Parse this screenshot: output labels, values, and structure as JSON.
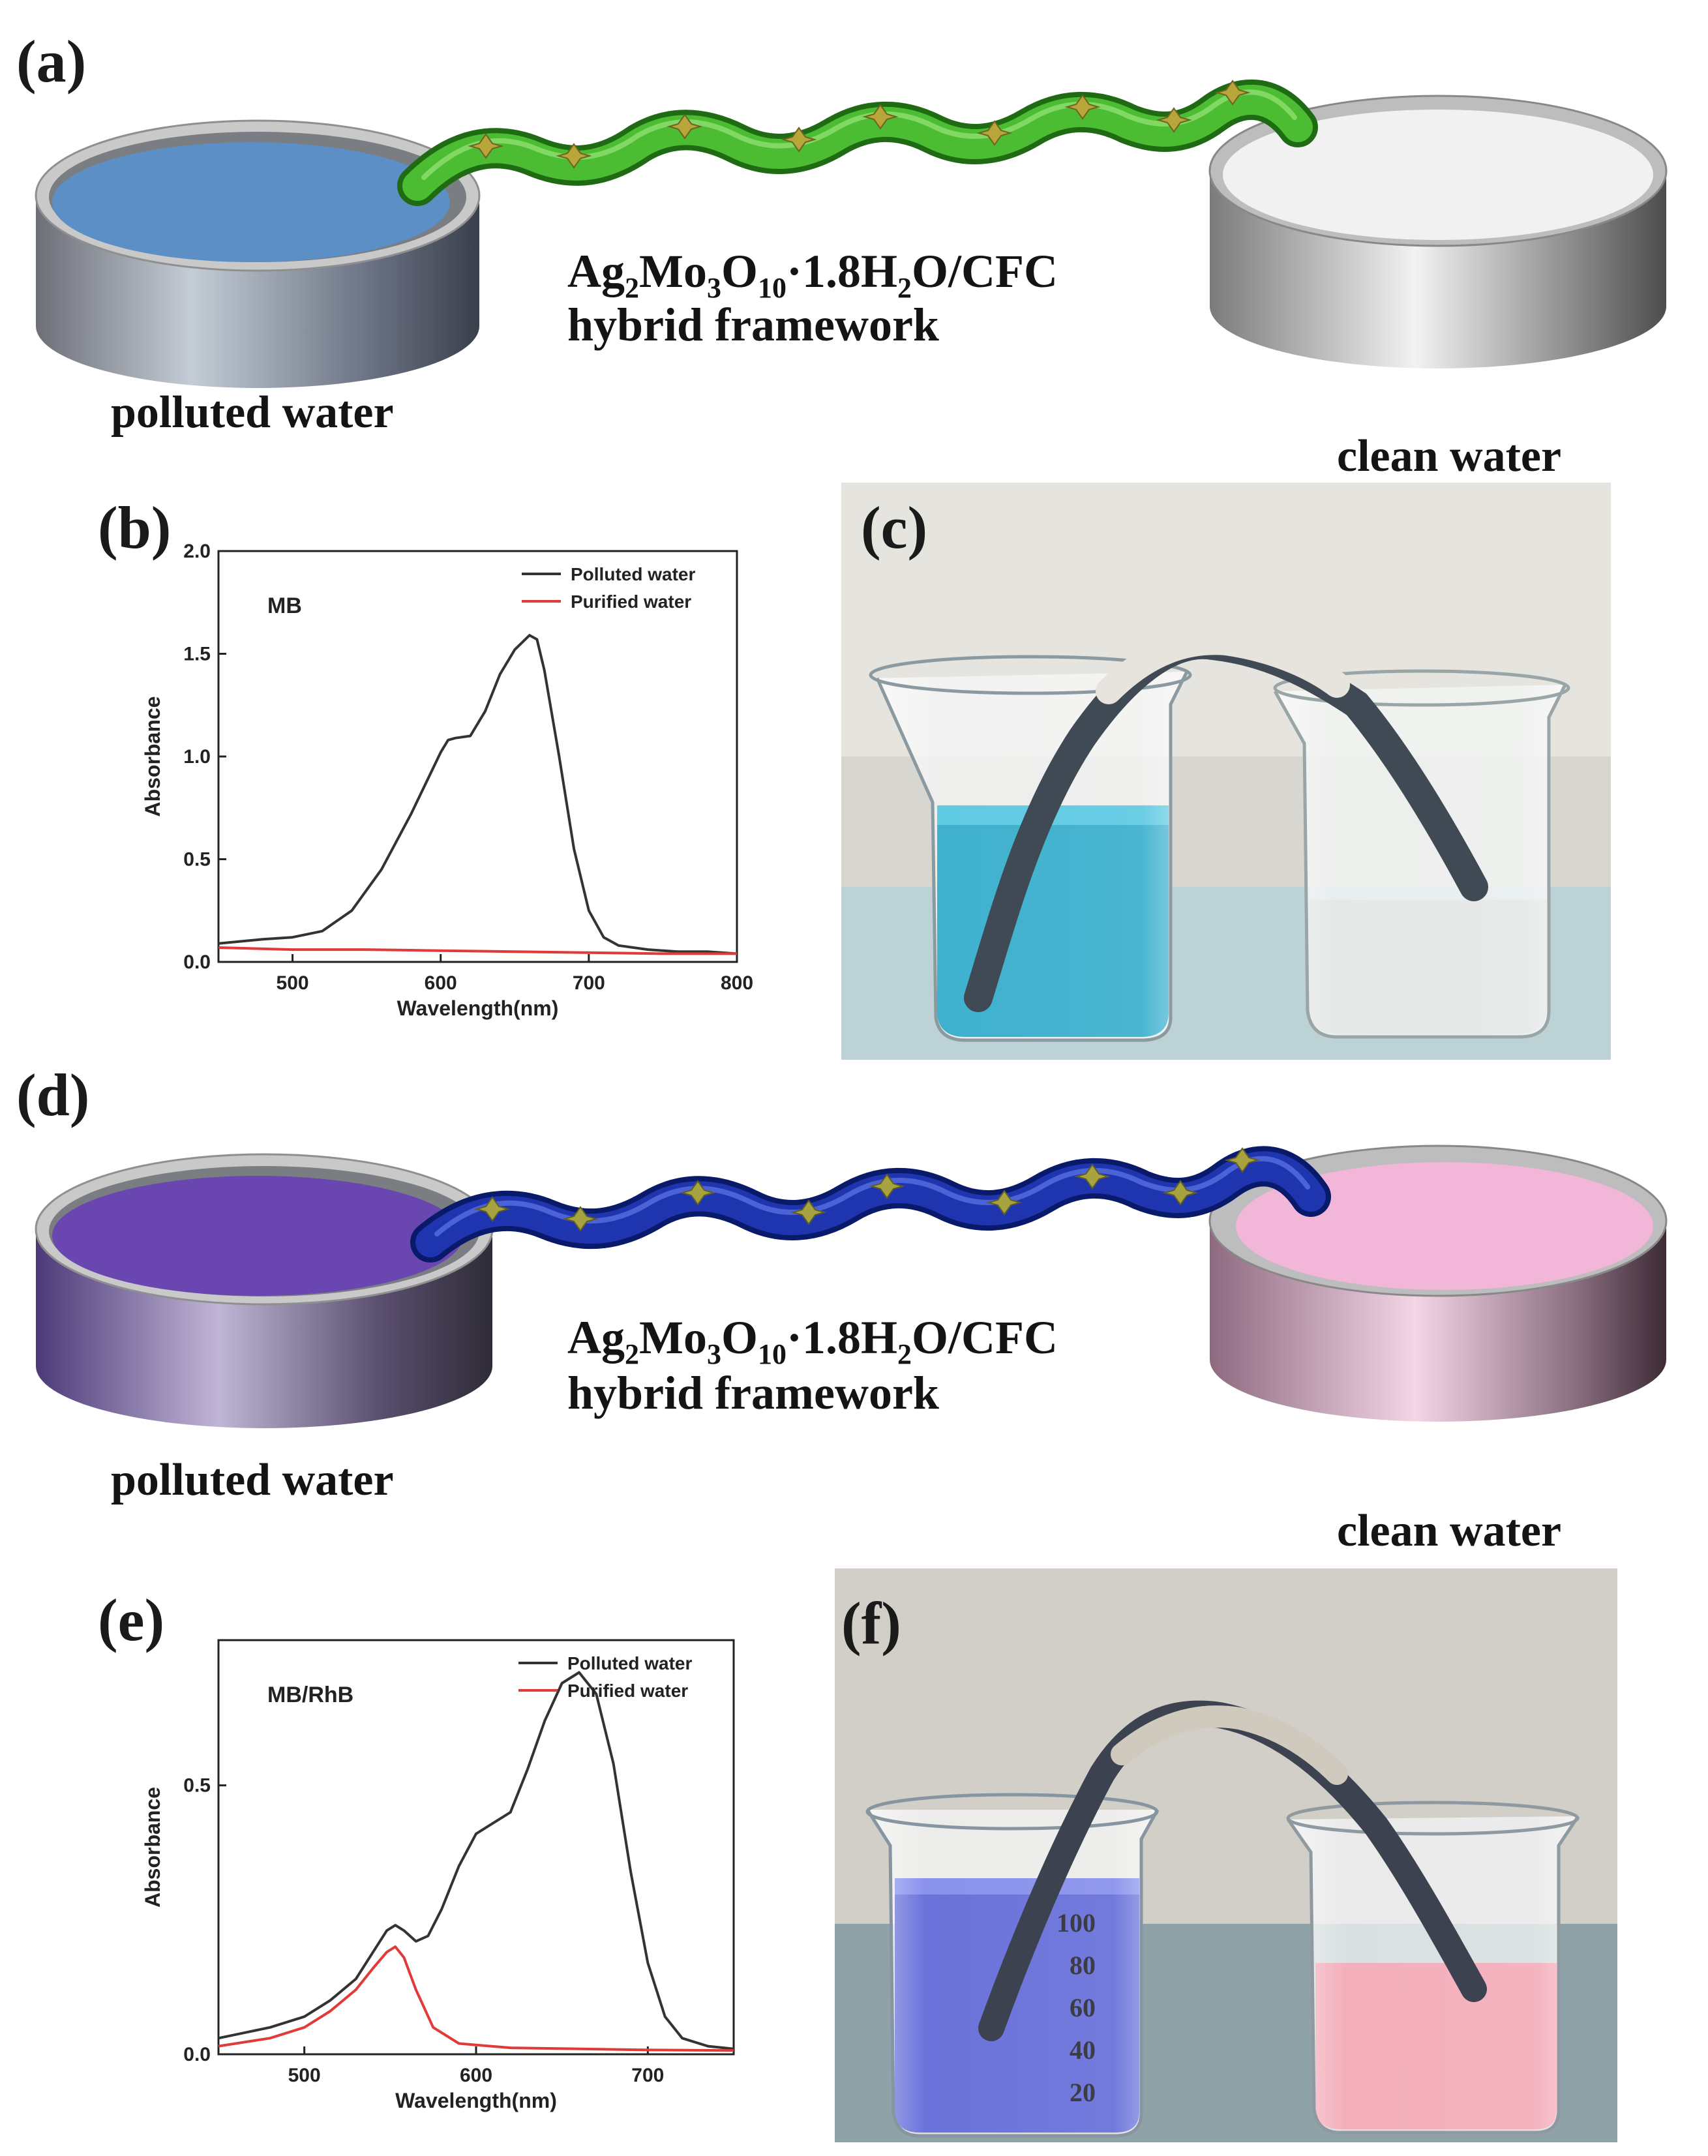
{
  "panels": {
    "a": {
      "letter": "(a)",
      "left_label": "polluted water",
      "right_label": "clean water",
      "framework_title_prefix": "Ag",
      "framework_sub1": "2",
      "framework_mid1": "Mo",
      "framework_sub2": "3",
      "framework_mid2": "O",
      "framework_sub3": "10",
      "framework_mid3": "·1.8H",
      "framework_sub4": "2",
      "framework_suffix": "O/CFC",
      "framework_line2": "hybrid framework",
      "colors": {
        "polluted": "#5b8fc6",
        "clean": "#efefef",
        "strip": "#3fb12a"
      }
    },
    "b": {
      "letter": "(b)",
      "dye_label": "MB",
      "legend": [
        "Polluted water",
        "Purified water"
      ]
    },
    "c": {
      "letter": "(c)",
      "colors": {
        "left_liquid": "#29a8c9",
        "right_liquid": "#e2e6e4",
        "background": "#d8d6d0"
      }
    },
    "d": {
      "letter": "(d)",
      "left_label": "polluted water",
      "right_label": "clean water",
      "framework_title_prefix": "Ag",
      "framework_sub1": "2",
      "framework_mid1": "Mo",
      "framework_sub2": "3",
      "framework_mid2": "O",
      "framework_sub3": "10",
      "framework_mid3": "·1.8H",
      "framework_sub4": "2",
      "framework_suffix": "O/CFC",
      "framework_line2": "hybrid framework",
      "colors": {
        "polluted": "#6a46b0",
        "clean": "#f2b7d8",
        "strip": "#1830a8"
      }
    },
    "e": {
      "letter": "(e)",
      "dye_label": "MB/RhB",
      "legend": [
        "Polluted water",
        "Purified water"
      ]
    },
    "f": {
      "letter": "(f)",
      "colors": {
        "left_liquid": "#5a63d6",
        "right_liquid": "#f2a6b4",
        "background": "#9ca8ab"
      },
      "beaker_marks": [
        "100",
        "80",
        "60",
        "40",
        "20"
      ]
    }
  },
  "chart_data": [
    {
      "panel": "b",
      "type": "line",
      "xlabel": "Wavelength(nm)",
      "ylabel": "Absorbance",
      "xlim": [
        450,
        800
      ],
      "ylim": [
        0,
        2.0
      ],
      "xticks": [
        500,
        600,
        700,
        800
      ],
      "yticks": [
        0.0,
        0.5,
        1.0,
        1.5,
        2.0
      ],
      "ytick_labels": [
        "0.0",
        "0.5",
        "1.0",
        "1.5",
        "2.0"
      ],
      "legend_position": "top-right",
      "series": [
        {
          "name": "Polluted water",
          "color": "#333333",
          "x": [
            450,
            480,
            500,
            520,
            540,
            560,
            580,
            600,
            605,
            610,
            620,
            630,
            640,
            650,
            660,
            665,
            670,
            680,
            690,
            700,
            710,
            720,
            740,
            760,
            780,
            800
          ],
          "y": [
            0.09,
            0.11,
            0.12,
            0.15,
            0.25,
            0.45,
            0.72,
            1.02,
            1.08,
            1.09,
            1.1,
            1.22,
            1.4,
            1.52,
            1.59,
            1.57,
            1.42,
            1.0,
            0.55,
            0.25,
            0.12,
            0.08,
            0.06,
            0.05,
            0.05,
            0.04
          ]
        },
        {
          "name": "Purified water",
          "color": "#e03a3a",
          "x": [
            450,
            500,
            550,
            600,
            650,
            700,
            750,
            800
          ],
          "y": [
            0.07,
            0.06,
            0.06,
            0.055,
            0.05,
            0.045,
            0.04,
            0.04
          ]
        }
      ]
    },
    {
      "panel": "e",
      "type": "line",
      "xlabel": "Wavelength(nm)",
      "ylabel": "Absorbance",
      "xlim": [
        450,
        750
      ],
      "ylim": [
        0,
        0.77
      ],
      "xticks": [
        500,
        600,
        700
      ],
      "yticks": [
        0.0,
        0.5
      ],
      "ytick_labels": [
        "0.0",
        "0.5"
      ],
      "legend_position": "top-right",
      "series": [
        {
          "name": "Polluted water",
          "color": "#333333",
          "x": [
            450,
            480,
            500,
            515,
            530,
            540,
            548,
            553,
            558,
            565,
            572,
            580,
            590,
            600,
            610,
            620,
            630,
            640,
            650,
            660,
            670,
            680,
            690,
            700,
            710,
            720,
            735,
            750
          ],
          "y": [
            0.03,
            0.05,
            0.07,
            0.1,
            0.14,
            0.19,
            0.23,
            0.24,
            0.23,
            0.21,
            0.22,
            0.27,
            0.35,
            0.41,
            0.43,
            0.45,
            0.53,
            0.62,
            0.69,
            0.71,
            0.67,
            0.54,
            0.34,
            0.17,
            0.07,
            0.03,
            0.015,
            0.01
          ]
        },
        {
          "name": "Purified water",
          "color": "#e03a3a",
          "x": [
            450,
            480,
            500,
            515,
            530,
            540,
            548,
            553,
            558,
            565,
            575,
            590,
            620,
            700,
            750
          ],
          "y": [
            0.015,
            0.03,
            0.05,
            0.08,
            0.12,
            0.16,
            0.19,
            0.2,
            0.18,
            0.12,
            0.05,
            0.02,
            0.012,
            0.008,
            0.007
          ]
        }
      ]
    }
  ]
}
